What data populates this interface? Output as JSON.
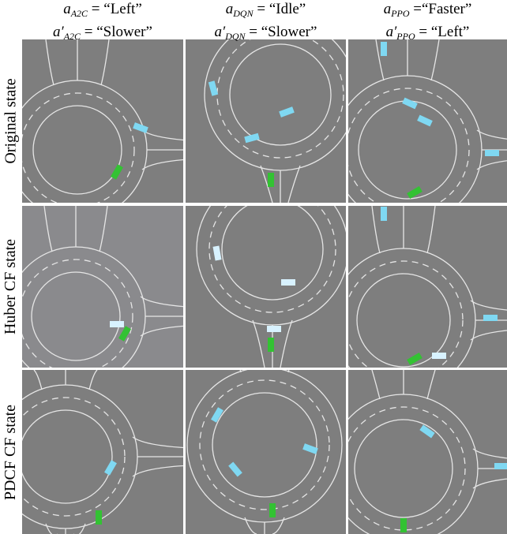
{
  "columns": [
    {
      "line1": {
        "base": "a",
        "sub": "A2C",
        "rest": " = “Left”"
      },
      "line2": {
        "base": "a′",
        "sub": "A2C",
        "rest": " = “Slower”"
      }
    },
    {
      "line1": {
        "base": "a",
        "sub": "DQN",
        "rest": " = “Idle”"
      },
      "line2": {
        "base": "a′",
        "sub": "DQN",
        "rest": " = “Slower”"
      }
    },
    {
      "line1": {
        "base": "a",
        "sub": "PPO",
        "rest": " =“Faster”"
      },
      "line2": {
        "base": "a′",
        "sub": "PPO",
        "rest": " = “Left”"
      }
    }
  ],
  "rows": [
    "Original state",
    "Huber CF state",
    "PDCF CF state"
  ]
}
